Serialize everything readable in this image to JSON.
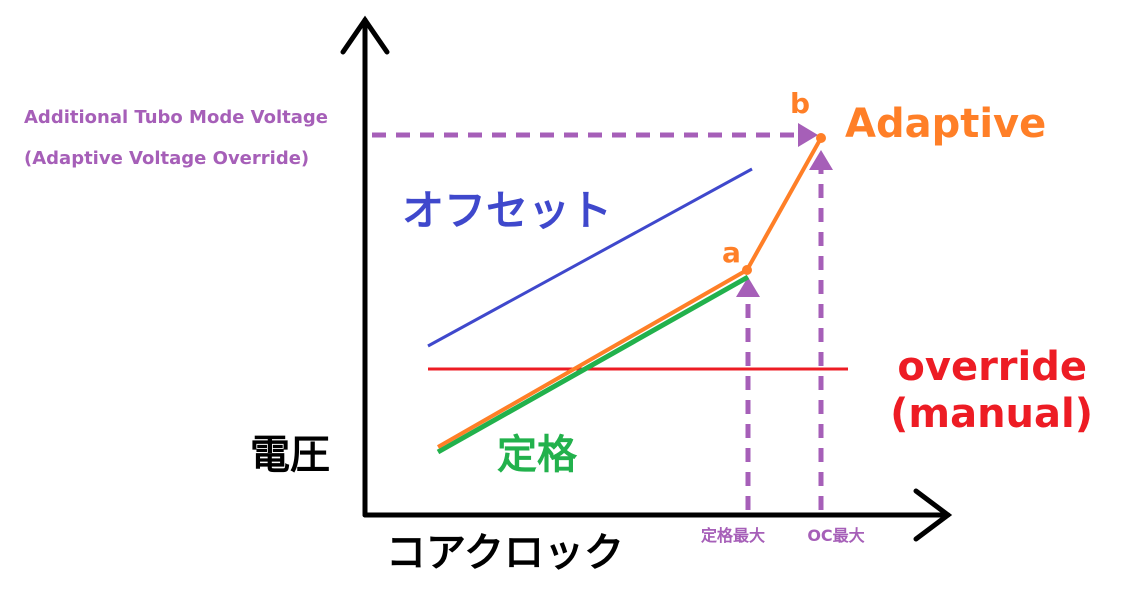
{
  "axes": {
    "y_label": "電圧",
    "x_label": "コアクロック"
  },
  "annotation": {
    "line1": "Additional Tubo Mode Voltage",
    "line2": "(Adaptive Voltage Override)"
  },
  "lines": {
    "offset": {
      "label": "オフセット"
    },
    "override": {
      "label1": "override",
      "label2": "(manual)"
    },
    "rated": {
      "label": "定格"
    },
    "adaptive": {
      "label": "Adaptive",
      "point_a": "a",
      "point_b": "b"
    }
  },
  "x_markers": {
    "rated_max": "定格最大",
    "oc_max": "OC最大"
  }
}
